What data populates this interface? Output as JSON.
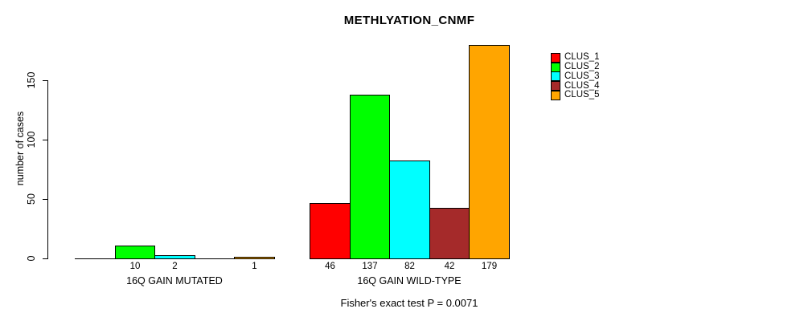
{
  "title": "METHLYATION_CNMF",
  "ylabel": "number of cases",
  "footer": "Fisher's exact test P = 0.0071",
  "legend": {
    "items": [
      {
        "label": "CLUS_1",
        "color": "#FF0000"
      },
      {
        "label": "CLUS_2",
        "color": "#00FF00"
      },
      {
        "label": "CLUS_3",
        "color": "#00FFFF"
      },
      {
        "label": "CLUS_4",
        "color": "#A52A2A"
      },
      {
        "label": "CLUS_5",
        "color": "#FFA500"
      }
    ]
  },
  "chart_data": {
    "type": "bar",
    "title": "METHLYATION_CNMF",
    "ylabel": "number of cases",
    "xlabel": "",
    "ylim": [
      0,
      180
    ],
    "yticks": [
      0,
      50,
      100,
      150
    ],
    "grid": false,
    "legend_position": "top-right",
    "series": [
      {
        "name": "CLUS_1",
        "color": "#FF0000"
      },
      {
        "name": "CLUS_2",
        "color": "#00FF00"
      },
      {
        "name": "CLUS_3",
        "color": "#00FFFF"
      },
      {
        "name": "CLUS_4",
        "color": "#A52A2A"
      },
      {
        "name": "CLUS_5",
        "color": "#FFA500"
      }
    ],
    "groups": [
      {
        "label": "16Q GAIN MUTATED",
        "values": [
          0,
          10,
          2,
          0,
          1
        ]
      },
      {
        "label": "16Q GAIN WILD-TYPE",
        "values": [
          46,
          137,
          82,
          42,
          179
        ]
      }
    ],
    "bar_value_labels_shown_when": "value > 0",
    "annotation": "Fisher's exact test P = 0.0071"
  }
}
